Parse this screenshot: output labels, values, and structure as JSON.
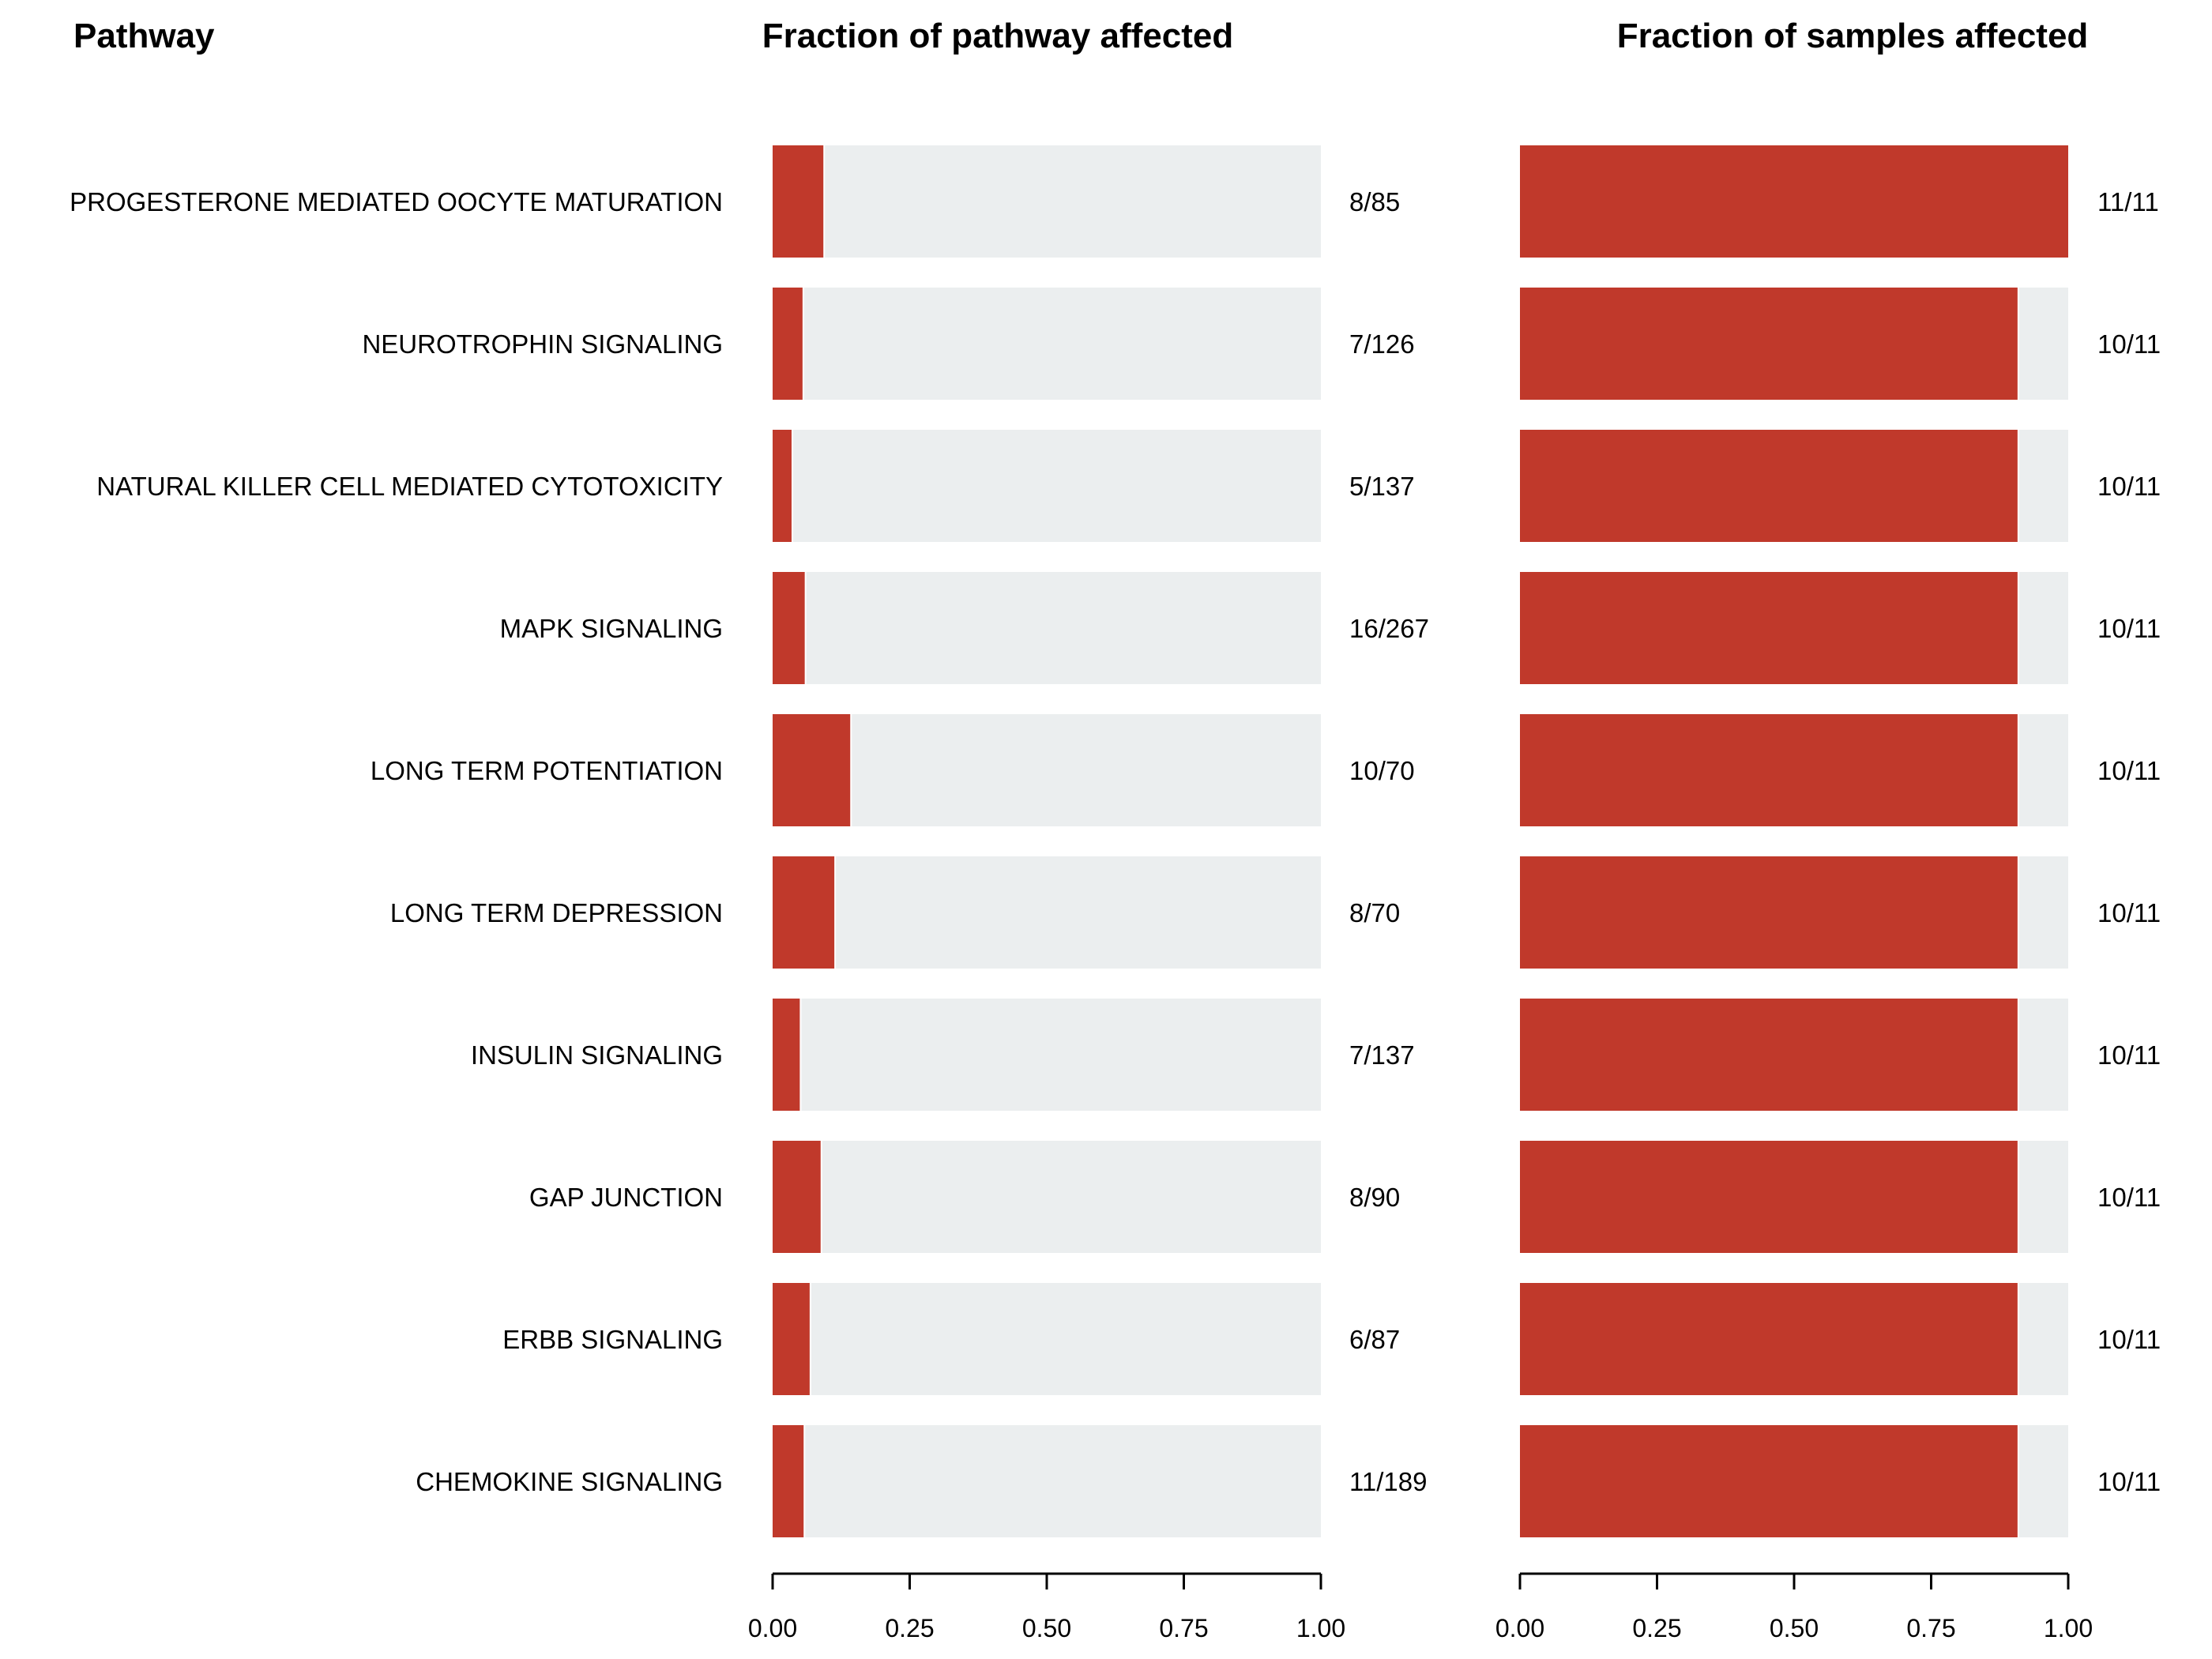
{
  "headers": {
    "pathway": "Pathway",
    "panel1": "Fraction of pathway affected",
    "panel2": "Fraction of samples affected"
  },
  "colors": {
    "fill": "#c0392b",
    "background": "#ebeeef",
    "axis": "#000000"
  },
  "chart_data": [
    {
      "type": "bar",
      "orientation": "horizontal",
      "title": "Fraction of pathway affected",
      "xlim": [
        0,
        1
      ],
      "ticks": [
        "0.00",
        "0.25",
        "0.50",
        "0.75",
        "1.00"
      ],
      "categories": [
        "PROGESTERONE MEDIATED OOCYTE MATURATION",
        "NEUROTROPHIN SIGNALING",
        "NATURAL KILLER CELL MEDIATED CYTOTOXICITY",
        "MAPK SIGNALING",
        "LONG TERM POTENTIATION",
        "LONG TERM DEPRESSION",
        "INSULIN SIGNALING",
        "GAP JUNCTION",
        "ERBB SIGNALING",
        "CHEMOKINE SIGNALING"
      ],
      "values": [
        0.094,
        0.056,
        0.036,
        0.06,
        0.143,
        0.114,
        0.051,
        0.089,
        0.069,
        0.058
      ],
      "labels": [
        "8/85",
        "7/126",
        "5/137",
        "16/267",
        "10/70",
        "8/70",
        "7/137",
        "8/90",
        "6/87",
        "11/189"
      ]
    },
    {
      "type": "bar",
      "orientation": "horizontal",
      "title": "Fraction of samples affected",
      "xlim": [
        0,
        1
      ],
      "ticks": [
        "0.00",
        "0.25",
        "0.50",
        "0.75",
        "1.00"
      ],
      "categories": [
        "PROGESTERONE MEDIATED OOCYTE MATURATION",
        "NEUROTROPHIN SIGNALING",
        "NATURAL KILLER CELL MEDIATED CYTOTOXICITY",
        "MAPK SIGNALING",
        "LONG TERM POTENTIATION",
        "LONG TERM DEPRESSION",
        "INSULIN SIGNALING",
        "GAP JUNCTION",
        "ERBB SIGNALING",
        "CHEMOKINE SIGNALING"
      ],
      "values": [
        1.0,
        0.909,
        0.909,
        0.909,
        0.909,
        0.909,
        0.909,
        0.909,
        0.909,
        0.909
      ],
      "labels": [
        "11/11",
        "10/11",
        "10/11",
        "10/11",
        "10/11",
        "10/11",
        "10/11",
        "10/11",
        "10/11",
        "10/11"
      ]
    }
  ]
}
